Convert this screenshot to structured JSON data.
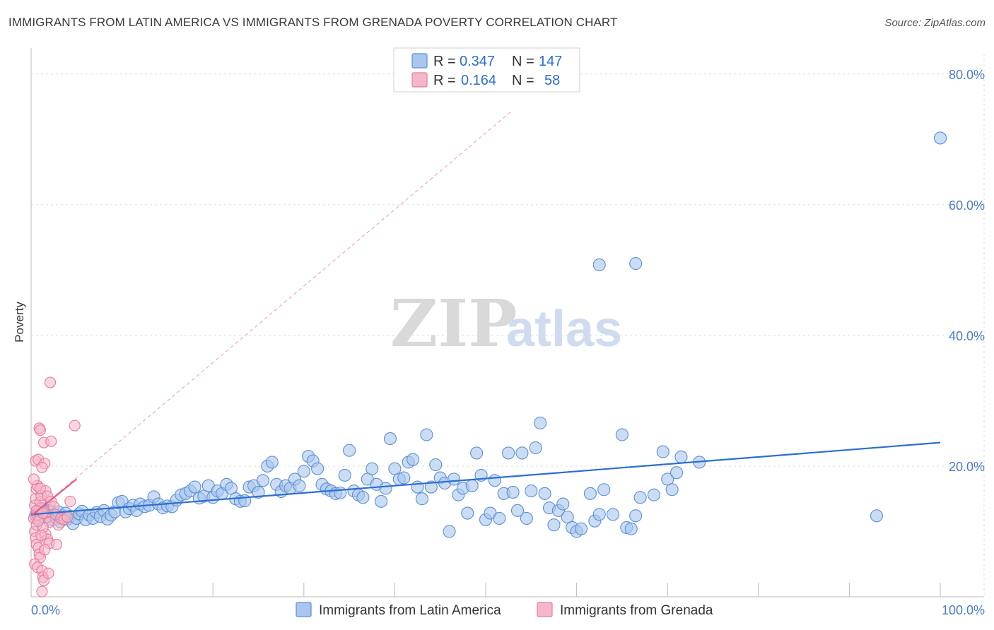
{
  "title": "IMMIGRANTS FROM LATIN AMERICA VS IMMIGRANTS FROM GRENADA POVERTY CORRELATION CHART",
  "source": "Source: ZipAtlas.com",
  "watermark": {
    "zip": "ZIP",
    "atlas": "atlas"
  },
  "legend": {
    "rows": [
      {
        "r_label": "R =",
        "r_value": "0.347",
        "n_label": "N =",
        "n_value": "147"
      },
      {
        "r_label": "R =",
        "r_value": "0.164",
        "n_label": "N =",
        "n_value": "58"
      }
    ]
  },
  "colors": {
    "blue": "#5b8fd8",
    "blue_fill": "#a9c6ef",
    "blue_line": "#2b6fd1",
    "pink": "#e8799a",
    "pink_fill": "#f6b6c9",
    "pink_line": "#e05a85",
    "grid": "#dddddd",
    "tick_text": "#4a7cc8"
  },
  "chart_data": {
    "type": "scatter",
    "title": "IMMIGRANTS FROM LATIN AMERICA VS IMMIGRANTS FROM GRENADA POVERTY CORRELATION CHART",
    "xlabel": "",
    "ylabel": "Poverty",
    "xlim": [
      0,
      100
    ],
    "ylim": [
      0,
      83
    ],
    "y_ticks": [
      "20.0%",
      "40.0%",
      "60.0%",
      "80.0%"
    ],
    "y_tick_values": [
      20,
      40,
      60,
      80
    ],
    "x_ticks": [
      "0.0%",
      "100.0%"
    ],
    "grid": true,
    "legend_placement": "top-center",
    "series": [
      {
        "name": "Immigrants from Latin America",
        "color": "#5b8fd8",
        "trend": {
          "x": [
            0,
            100
          ],
          "y": [
            12.6,
            23.6
          ],
          "style": "solid"
        },
        "points": [
          [
            0.5,
            12.5
          ],
          [
            0.8,
            13.0
          ],
          [
            1.0,
            12.0
          ],
          [
            1.2,
            13.5
          ],
          [
            1.5,
            12.8
          ],
          [
            1.8,
            12.2
          ],
          [
            2.0,
            13.2
          ],
          [
            2.2,
            11.8
          ],
          [
            2.5,
            12.6
          ],
          [
            2.8,
            12.0
          ],
          [
            3.0,
            13.0
          ],
          [
            3.2,
            11.5
          ],
          [
            3.5,
            12.4
          ],
          [
            3.8,
            12.8
          ],
          [
            4.0,
            11.9
          ],
          [
            4.3,
            12.3
          ],
          [
            4.6,
            11.2
          ],
          [
            5.0,
            12.0
          ],
          [
            5.3,
            12.7
          ],
          [
            5.6,
            13.1
          ],
          [
            6.0,
            11.8
          ],
          [
            6.4,
            12.5
          ],
          [
            6.8,
            12.0
          ],
          [
            7.2,
            12.9
          ],
          [
            7.6,
            12.3
          ],
          [
            8.0,
            13.2
          ],
          [
            8.4,
            11.9
          ],
          [
            8.8,
            12.5
          ],
          [
            9.2,
            13.0
          ],
          [
            9.6,
            14.4
          ],
          [
            10.0,
            14.6
          ],
          [
            10.4,
            13.0
          ],
          [
            10.8,
            13.5
          ],
          [
            11.2,
            14.0
          ],
          [
            11.6,
            13.2
          ],
          [
            12.0,
            14.2
          ],
          [
            12.5,
            13.8
          ],
          [
            13.0,
            14.0
          ],
          [
            13.5,
            15.3
          ],
          [
            14.0,
            14.2
          ],
          [
            14.5,
            13.6
          ],
          [
            15.0,
            13.9
          ],
          [
            15.5,
            13.8
          ],
          [
            16.0,
            14.8
          ],
          [
            16.5,
            15.6
          ],
          [
            17.0,
            15.8
          ],
          [
            17.5,
            16.2
          ],
          [
            18.0,
            16.8
          ],
          [
            18.5,
            15.1
          ],
          [
            19.0,
            15.4
          ],
          [
            19.5,
            17.0
          ],
          [
            20.0,
            15.2
          ],
          [
            20.5,
            16.2
          ],
          [
            21.0,
            15.8
          ],
          [
            21.5,
            17.2
          ],
          [
            22.0,
            16.6
          ],
          [
            22.5,
            15.0
          ],
          [
            23.0,
            14.6
          ],
          [
            23.5,
            14.7
          ],
          [
            24.0,
            16.8
          ],
          [
            24.5,
            17.0
          ],
          [
            25.0,
            16.0
          ],
          [
            25.5,
            17.8
          ],
          [
            26.0,
            20.0
          ],
          [
            26.5,
            20.6
          ],
          [
            27.0,
            17.2
          ],
          [
            27.5,
            16.1
          ],
          [
            28.0,
            17.0
          ],
          [
            28.5,
            16.6
          ],
          [
            29.0,
            18.0
          ],
          [
            29.5,
            17.0
          ],
          [
            30.0,
            19.2
          ],
          [
            30.5,
            21.5
          ],
          [
            31.0,
            20.8
          ],
          [
            31.5,
            19.6
          ],
          [
            32.0,
            17.2
          ],
          [
            32.5,
            16.5
          ],
          [
            33.0,
            16.2
          ],
          [
            33.5,
            15.8
          ],
          [
            34.0,
            15.9
          ],
          [
            34.5,
            18.6
          ],
          [
            35.0,
            22.4
          ],
          [
            35.5,
            16.2
          ],
          [
            36.0,
            15.6
          ],
          [
            36.5,
            15.2
          ],
          [
            37.0,
            18.0
          ],
          [
            37.5,
            19.6
          ],
          [
            38.0,
            17.2
          ],
          [
            38.5,
            14.6
          ],
          [
            39.0,
            16.6
          ],
          [
            39.5,
            24.2
          ],
          [
            40.0,
            19.6
          ],
          [
            40.5,
            18.0
          ],
          [
            41.0,
            18.2
          ],
          [
            41.5,
            20.6
          ],
          [
            42.0,
            21.0
          ],
          [
            42.5,
            16.8
          ],
          [
            43.0,
            15.0
          ],
          [
            43.5,
            24.8
          ],
          [
            44.0,
            16.8
          ],
          [
            44.5,
            20.2
          ],
          [
            45.0,
            18.2
          ],
          [
            45.5,
            17.4
          ],
          [
            46.0,
            10.0
          ],
          [
            46.5,
            18.0
          ],
          [
            47.0,
            15.6
          ],
          [
            47.5,
            16.6
          ],
          [
            48.0,
            12.8
          ],
          [
            48.5,
            17.0
          ],
          [
            49.0,
            22.0
          ],
          [
            49.5,
            18.6
          ],
          [
            50.0,
            11.8
          ],
          [
            50.5,
            12.8
          ],
          [
            51.0,
            17.8
          ],
          [
            51.5,
            12.0
          ],
          [
            52.0,
            15.8
          ],
          [
            52.5,
            22.0
          ],
          [
            53.0,
            16.0
          ],
          [
            53.5,
            13.2
          ],
          [
            54.0,
            22.0
          ],
          [
            54.5,
            12.0
          ],
          [
            55.0,
            16.2
          ],
          [
            55.5,
            22.8
          ],
          [
            56.0,
            26.6
          ],
          [
            56.5,
            15.8
          ],
          [
            57.0,
            13.6
          ],
          [
            57.5,
            11.0
          ],
          [
            58.0,
            13.2
          ],
          [
            58.5,
            14.2
          ],
          [
            59.0,
            12.2
          ],
          [
            59.5,
            10.6
          ],
          [
            60.0,
            10.0
          ],
          [
            60.5,
            10.4
          ],
          [
            61.5,
            15.8
          ],
          [
            62.0,
            11.6
          ],
          [
            62.5,
            12.6
          ],
          [
            63.0,
            16.4
          ],
          [
            64.0,
            12.6
          ],
          [
            65.0,
            24.8
          ],
          [
            65.5,
            10.6
          ],
          [
            66.0,
            10.4
          ],
          [
            66.5,
            12.4
          ],
          [
            67.0,
            15.2
          ],
          [
            68.5,
            15.6
          ],
          [
            69.5,
            22.2
          ],
          [
            70.0,
            18.0
          ],
          [
            70.5,
            16.4
          ],
          [
            71.0,
            19.0
          ],
          [
            71.5,
            21.4
          ],
          [
            73.5,
            20.6
          ],
          [
            62.5,
            50.8
          ],
          [
            66.5,
            51.0
          ],
          [
            93.0,
            12.4
          ],
          [
            100.0,
            70.2
          ]
        ]
      },
      {
        "name": "Immigrants from Grenada",
        "color": "#e8799a",
        "trend": {
          "x": [
            0,
            5
          ],
          "y": [
            12.4,
            18.0
          ],
          "style": "solid",
          "extended": {
            "x": [
              0,
              53
            ],
            "y": [
              12.4,
              74.5
            ],
            "style": "dashed"
          }
        },
        "points": [
          [
            0.3,
            12.0
          ],
          [
            0.4,
            14.0
          ],
          [
            0.5,
            15.0
          ],
          [
            0.6,
            16.5
          ],
          [
            0.7,
            17.0
          ],
          [
            0.3,
            18.0
          ],
          [
            0.5,
            20.8
          ],
          [
            0.8,
            21.0
          ],
          [
            0.4,
            10.0
          ],
          [
            0.6,
            11.0
          ],
          [
            0.7,
            12.5
          ],
          [
            0.9,
            13.5
          ],
          [
            1.0,
            14.5
          ],
          [
            1.1,
            15.5
          ],
          [
            0.5,
            9.0
          ],
          [
            0.6,
            8.0
          ],
          [
            0.8,
            7.5
          ],
          [
            0.9,
            6.5
          ],
          [
            1.0,
            6.0
          ],
          [
            0.4,
            5.0
          ],
          [
            0.7,
            4.5
          ],
          [
            1.2,
            4.0
          ],
          [
            1.3,
            3.0
          ],
          [
            1.4,
            2.5
          ],
          [
            1.2,
            0.8
          ],
          [
            0.9,
            25.8
          ],
          [
            1.0,
            25.5
          ],
          [
            1.4,
            23.6
          ],
          [
            2.2,
            23.8
          ],
          [
            2.1,
            32.8
          ],
          [
            4.8,
            26.2
          ],
          [
            1.5,
            20.4
          ],
          [
            1.2,
            19.8
          ],
          [
            1.6,
            16.2
          ],
          [
            1.8,
            15.4
          ],
          [
            1.4,
            13.0
          ],
          [
            1.7,
            12.2
          ],
          [
            2.0,
            11.4
          ],
          [
            2.2,
            14.6
          ],
          [
            2.5,
            13.8
          ],
          [
            2.7,
            12.6
          ],
          [
            3.0,
            11.0
          ],
          [
            3.3,
            12.0
          ],
          [
            3.6,
            11.8
          ],
          [
            4.0,
            12.2
          ],
          [
            4.3,
            14.6
          ],
          [
            1.6,
            9.6
          ],
          [
            1.8,
            8.8
          ],
          [
            2.0,
            8.2
          ],
          [
            1.5,
            7.2
          ],
          [
            1.3,
            10.6
          ],
          [
            1.1,
            9.4
          ],
          [
            2.8,
            8.0
          ],
          [
            1.9,
            3.6
          ],
          [
            1.0,
            16.6
          ],
          [
            0.6,
            13.2
          ],
          [
            0.8,
            11.6
          ],
          [
            1.3,
            12.8
          ]
        ]
      }
    ]
  },
  "bottom_legend": [
    {
      "label": "Immigrants from Latin America"
    },
    {
      "label": "Immigrants from Grenada"
    }
  ]
}
